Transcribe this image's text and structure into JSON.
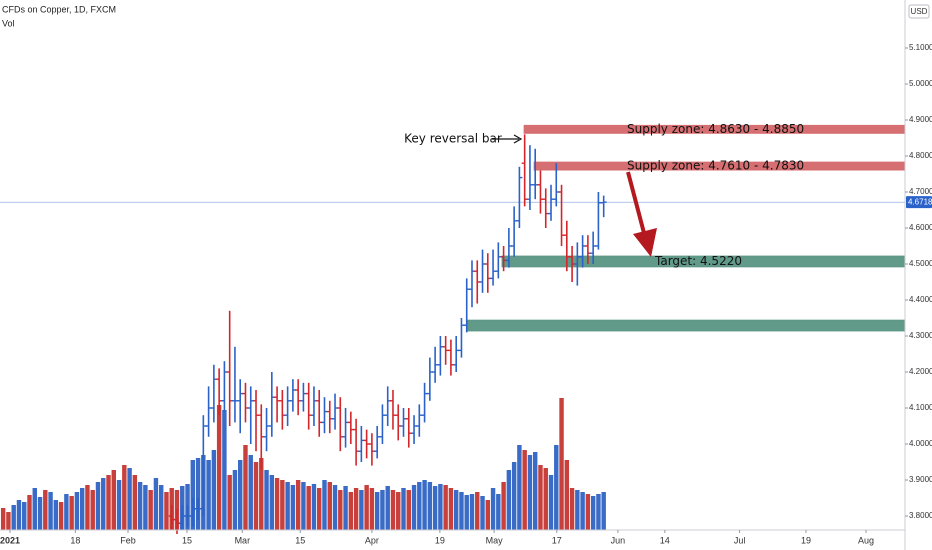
{
  "chart_data": {
    "type": "ohlc",
    "title": "CFDs on Copper, 1D, FXCM",
    "volume_label": "Vol",
    "currency": "USD",
    "xlim": [
      -0.6,
      171.2
    ],
    "xticks": [
      {
        "value": 1.3,
        "label": "2021"
      },
      {
        "value": 13.7,
        "label": "18"
      },
      {
        "value": 23.7,
        "label": "Feb"
      },
      {
        "value": 34.9,
        "label": "15"
      },
      {
        "value": 45.4,
        "label": "Mar"
      },
      {
        "value": 56.4,
        "label": "15"
      },
      {
        "value": 70.0,
        "label": "Apr"
      },
      {
        "value": 82.9,
        "label": "19"
      },
      {
        "value": 93.2,
        "label": "May"
      },
      {
        "value": 105.1,
        "label": "17"
      },
      {
        "value": 116.7,
        "label": "Jun"
      },
      {
        "value": 125.6,
        "label": "14"
      },
      {
        "value": 139.8,
        "label": "Jul"
      },
      {
        "value": 152.4,
        "label": "19"
      },
      {
        "value": 163.8,
        "label": "Aug"
      }
    ],
    "ylim": [
      3.7611,
      5.2333
    ],
    "yticks": [
      {
        "value": 5.1,
        "label": "5.1000"
      },
      {
        "value": 5.0,
        "label": "5.0000"
      },
      {
        "value": 4.9,
        "label": "4.9000"
      },
      {
        "value": 4.8,
        "label": "4.8000"
      },
      {
        "value": 4.7,
        "label": "4.7000"
      },
      {
        "value": 4.6,
        "label": "4.6000"
      },
      {
        "value": 4.5,
        "label": "4.5000"
      },
      {
        "value": 4.4,
        "label": "4.4000"
      },
      {
        "value": 4.3,
        "label": "4.3000"
      },
      {
        "value": 4.2,
        "label": "4.2000"
      },
      {
        "value": 4.1,
        "label": "4.1000"
      },
      {
        "value": 4.0,
        "label": "4.0000"
      },
      {
        "value": 3.9,
        "label": "3.9000"
      },
      {
        "value": 3.8,
        "label": "3.8000"
      }
    ],
    "up_color": "#2a62c9",
    "down_color": "#d3262b",
    "x": [
      32,
      33,
      34,
      35,
      36,
      37,
      38,
      39,
      40,
      41,
      42,
      43,
      44,
      45,
      46,
      47,
      48,
      49,
      50,
      51,
      52,
      53,
      54,
      55,
      56,
      57,
      58,
      59,
      60,
      61,
      62,
      63,
      64,
      65,
      66,
      67,
      68,
      69,
      70,
      71,
      72,
      73,
      74,
      75,
      76,
      77,
      78,
      79,
      80,
      81,
      82,
      83,
      84,
      85,
      86,
      87,
      88,
      89,
      90,
      91,
      92,
      93,
      94,
      95,
      96,
      97,
      98,
      99,
      100,
      101,
      102,
      103,
      104,
      105,
      106,
      107,
      108,
      109,
      110,
      111,
      112,
      113,
      114
    ],
    "open": [
      3.8,
      3.79,
      3.78,
      3.8,
      3.8,
      3.82,
      3.82,
      4.05,
      4.1,
      4.18,
      4.12,
      4.2,
      4.12,
      4.12,
      4.14,
      4.1,
      4.12,
      4.08,
      4.02,
      4.05,
      4.13,
      4.12,
      4.08,
      4.12,
      4.15,
      4.12,
      4.14,
      4.08,
      4.12,
      4.06,
      4.09,
      4.07,
      4.1,
      4.02,
      4.06,
      4.04,
      3.98,
      4.01,
      4.0,
      3.98,
      4.02,
      4.08,
      4.12,
      4.08,
      4.05,
      4.07,
      4.03,
      4.05,
      4.08,
      4.14,
      4.2,
      4.22,
      4.27,
      4.26,
      4.22,
      4.26,
      4.33,
      4.43,
      4.48,
      4.45,
      4.5,
      4.46,
      4.48,
      4.52,
      4.51,
      4.55,
      4.62,
      4.78,
      4.68,
      4.72,
      4.72,
      4.68,
      4.64,
      4.68,
      4.7,
      4.58,
      4.52,
      4.5,
      4.52,
      4.55,
      4.53,
      4.55,
      4.67
    ],
    "high": [
      3.83,
      3.82,
      3.83,
      3.83,
      3.85,
      3.85,
      4.08,
      4.16,
      4.22,
      4.21,
      4.23,
      4.37,
      4.27,
      4.18,
      4.17,
      4.16,
      4.15,
      4.11,
      4.1,
      4.2,
      4.16,
      4.15,
      4.16,
      4.18,
      4.18,
      4.17,
      4.17,
      4.16,
      4.15,
      4.13,
      4.12,
      4.14,
      4.13,
      4.1,
      4.09,
      4.07,
      4.05,
      4.04,
      4.03,
      4.05,
      4.11,
      4.16,
      4.15,
      4.11,
      4.1,
      4.1,
      4.08,
      4.11,
      4.17,
      4.24,
      4.27,
      4.3,
      4.3,
      4.29,
      4.3,
      4.35,
      4.46,
      4.51,
      4.51,
      4.54,
      4.53,
      4.54,
      4.56,
      4.55,
      4.6,
      4.66,
      4.77,
      4.86,
      4.83,
      4.82,
      4.76,
      4.71,
      4.72,
      4.78,
      4.72,
      4.62,
      4.55,
      4.56,
      4.58,
      4.58,
      4.59,
      4.7,
      4.69
    ],
    "low": [
      3.76,
      3.75,
      3.76,
      3.77,
      3.77,
      3.79,
      3.8,
      4.02,
      4.06,
      4.08,
      4.09,
      4.05,
      4.06,
      4.03,
      4.06,
      4.0,
      3.98,
      3.93,
      3.98,
      4.02,
      4.06,
      4.04,
      4.05,
      4.09,
      4.08,
      4.09,
      4.04,
      4.05,
      4.02,
      4.03,
      4.03,
      4.04,
      3.98,
      3.99,
      4.0,
      3.94,
      3.95,
      3.96,
      3.94,
      3.96,
      4.0,
      4.05,
      4.04,
      4.01,
      4.02,
      3.99,
      4.0,
      4.02,
      4.06,
      4.12,
      4.17,
      4.19,
      4.22,
      4.19,
      4.2,
      4.24,
      4.31,
      4.38,
      4.39,
      4.42,
      4.42,
      4.44,
      4.46,
      4.48,
      4.49,
      4.52,
      4.6,
      4.66,
      4.65,
      4.68,
      4.64,
      4.6,
      4.62,
      4.66,
      4.55,
      4.48,
      4.45,
      4.44,
      4.49,
      4.5,
      4.5,
      4.54,
      4.63
    ],
    "close": [
      3.79,
      3.78,
      3.8,
      3.8,
      3.82,
      3.82,
      4.05,
      4.1,
      4.18,
      4.12,
      4.2,
      4.12,
      4.12,
      4.14,
      4.1,
      4.12,
      4.08,
      4.02,
      4.05,
      4.13,
      4.12,
      4.08,
      4.12,
      4.15,
      4.12,
      4.14,
      4.08,
      4.12,
      4.06,
      4.09,
      4.07,
      4.1,
      4.02,
      4.06,
      4.04,
      3.98,
      4.01,
      4.0,
      3.98,
      4.02,
      4.08,
      4.12,
      4.08,
      4.05,
      4.07,
      4.03,
      4.05,
      4.08,
      4.14,
      4.2,
      4.22,
      4.27,
      4.26,
      4.22,
      4.26,
      4.33,
      4.43,
      4.48,
      4.45,
      4.5,
      4.46,
      4.48,
      4.52,
      4.51,
      4.55,
      4.62,
      4.74,
      4.68,
      4.72,
      4.72,
      4.68,
      4.64,
      4.68,
      4.7,
      4.58,
      4.52,
      4.5,
      4.52,
      4.55,
      4.53,
      4.55,
      4.67,
      4.6718
    ],
    "last_price_color": "#2a62c9",
    "volume": {
      "vlim": [
        0,
        150
      ],
      "x": [
        0,
        1,
        2,
        3,
        4,
        5,
        6,
        7,
        8,
        9,
        10,
        11,
        12,
        13,
        14,
        15,
        16,
        17,
        18,
        19,
        20,
        21,
        22,
        23,
        24,
        25,
        26,
        27,
        28,
        29,
        30,
        31,
        32,
        33,
        34,
        35,
        36,
        37,
        38,
        39,
        40,
        41,
        42,
        43,
        44,
        45,
        46,
        47,
        48,
        49,
        50,
        51,
        52,
        53,
        54,
        55,
        56,
        57,
        58,
        59,
        60,
        61,
        62,
        63,
        64,
        65,
        66,
        67,
        68,
        69,
        70,
        71,
        72,
        73,
        74,
        75,
        76,
        77,
        78,
        79,
        80,
        81,
        82,
        83,
        84,
        85,
        86,
        87,
        88,
        89,
        90,
        91,
        92,
        93,
        94,
        95,
        96,
        97,
        98,
        99,
        100,
        101,
        102,
        103,
        104,
        105,
        106,
        107,
        108,
        109,
        110,
        111,
        112,
        113,
        114
      ],
      "values": [
        22,
        18,
        25,
        30,
        28,
        35,
        42,
        33,
        40,
        38,
        30,
        28,
        36,
        34,
        38,
        42,
        45,
        40,
        48,
        52,
        55,
        60,
        50,
        65,
        62,
        55,
        48,
        45,
        40,
        52,
        45,
        38,
        42,
        40,
        44,
        46,
        70,
        72,
        75,
        70,
        80,
        125,
        120,
        55,
        60,
        70,
        85,
        75,
        68,
        72,
        60,
        55,
        52,
        50,
        48,
        45,
        50,
        48,
        44,
        46,
        42,
        50,
        48,
        45,
        40,
        44,
        38,
        42,
        40,
        45,
        42,
        38,
        40,
        44,
        40,
        38,
        42,
        40,
        45,
        48,
        50,
        48,
        44,
        46,
        45,
        42,
        40,
        38,
        35,
        36,
        38,
        34,
        30,
        42,
        36,
        48,
        60,
        68,
        85,
        80,
        75,
        78,
        65,
        62,
        55,
        85,
        132,
        70,
        42,
        40,
        38,
        36,
        34,
        36,
        38
      ],
      "colors": [
        "#c8403c",
        "#c8403c",
        "#3a6bc6",
        "#3a6bc6",
        "#3a6bc6",
        "#c8403c",
        "#3a6bc6",
        "#3a6bc6",
        "#c8403c",
        "#3a6bc6",
        "#3a6bc6",
        "#c8403c",
        "#3a6bc6",
        "#c8403c",
        "#3a6bc6",
        "#3a6bc6",
        "#c8403c",
        "#c8403c",
        "#3a6bc6",
        "#3a6bc6",
        "#c8403c",
        "#c8403c",
        "#3a6bc6",
        "#c8403c",
        "#3a6bc6",
        "#c8403c",
        "#3a6bc6",
        "#3a6bc6",
        "#c8403c",
        "#3a6bc6",
        "#3a6bc6",
        "#c8403c",
        "#c8403c",
        "#c8403c",
        "#3a6bc6",
        "#3a6bc6",
        "#3a6bc6",
        "#3a6bc6",
        "#3a6bc6",
        "#3a6bc6",
        "#3a6bc6",
        "#c8403c",
        "#3a6bc6",
        "#c8403c",
        "#3a6bc6",
        "#3a6bc6",
        "#c8403c",
        "#3a6bc6",
        "#c8403c",
        "#c8403c",
        "#3a6bc6",
        "#3a6bc6",
        "#c8403c",
        "#c8403c",
        "#3a6bc6",
        "#3a6bc6",
        "#c8403c",
        "#3a6bc6",
        "#c8403c",
        "#3a6bc6",
        "#c8403c",
        "#3a6bc6",
        "#c8403c",
        "#3a6bc6",
        "#c8403c",
        "#3a6bc6",
        "#c8403c",
        "#c8403c",
        "#3a6bc6",
        "#c8403c",
        "#c8403c",
        "#3a6bc6",
        "#3a6bc6",
        "#3a6bc6",
        "#c8403c",
        "#c8403c",
        "#3a6bc6",
        "#c8403c",
        "#3a6bc6",
        "#3a6bc6",
        "#3a6bc6",
        "#3a6bc6",
        "#3a6bc6",
        "#3a6bc6",
        "#c8403c",
        "#c8403c",
        "#3a6bc6",
        "#3a6bc6",
        "#3a6bc6",
        "#3a6bc6",
        "#c8403c",
        "#3a6bc6",
        "#c8403c",
        "#3a6bc6",
        "#3a6bc6",
        "#c8403c",
        "#3a6bc6",
        "#3a6bc6",
        "#3a6bc6",
        "#c8403c",
        "#3a6bc6",
        "#3a6bc6",
        "#c8403c",
        "#c8403c",
        "#3a6bc6",
        "#3a6bc6",
        "#c8403c",
        "#c8403c",
        "#c8403c",
        "#3a6bc6",
        "#3a6bc6",
        "#c8403c",
        "#3a6bc6",
        "#3a6bc6",
        "#3a6bc6"
      ]
    },
    "zones": [
      {
        "x_start": 98.9,
        "low": 4.863,
        "high": 4.885,
        "label": "Supply zone: 4.8630 - 4.8850",
        "color": "#d4676a"
      },
      {
        "x_start": 100.8,
        "low": 4.761,
        "high": 4.783,
        "label": "Supply zone: 4.7610 - 4.7830",
        "color": "#d4676a"
      },
      {
        "x_start": 94.7,
        "low": 4.492,
        "high": 4.522,
        "label": "Target: 4.5220",
        "color": "#5a9583"
      },
      {
        "x_start": 88.2,
        "low": 4.314,
        "high": 4.344,
        "color": "#5a9583"
      }
    ],
    "annotation": "Key reversal bar"
  }
}
